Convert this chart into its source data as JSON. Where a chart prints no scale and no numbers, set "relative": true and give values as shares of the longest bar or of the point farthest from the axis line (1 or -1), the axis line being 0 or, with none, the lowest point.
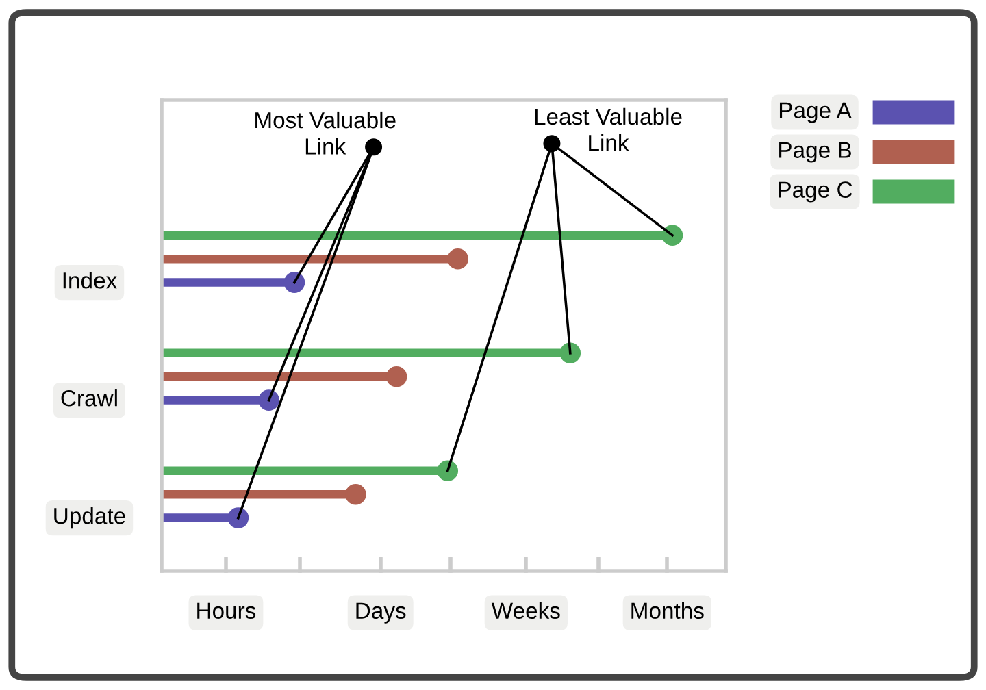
{
  "chart_data": {
    "type": "lollipop",
    "orientation": "horizontal",
    "relative": true,
    "categories": [
      "Index",
      "Crawl",
      "Update"
    ],
    "series": [
      {
        "name": "Page A",
        "color": "#5b52b0",
        "values": [
          0.26,
          0.21,
          0.15
        ]
      },
      {
        "name": "Page B",
        "color": "#b06050",
        "values": [
          0.58,
          0.46,
          0.38
        ]
      },
      {
        "name": "Page C",
        "color": "#52ad60",
        "values": [
          1,
          0.8,
          0.56
        ]
      }
    ],
    "annotations": [
      "Most Valuable\nLink",
      "Least Valuable\nLink",
      "Hours",
      "Days",
      "Weeks",
      "Months"
    ],
    "legend": "top right",
    "marker": "circle"
  }
}
